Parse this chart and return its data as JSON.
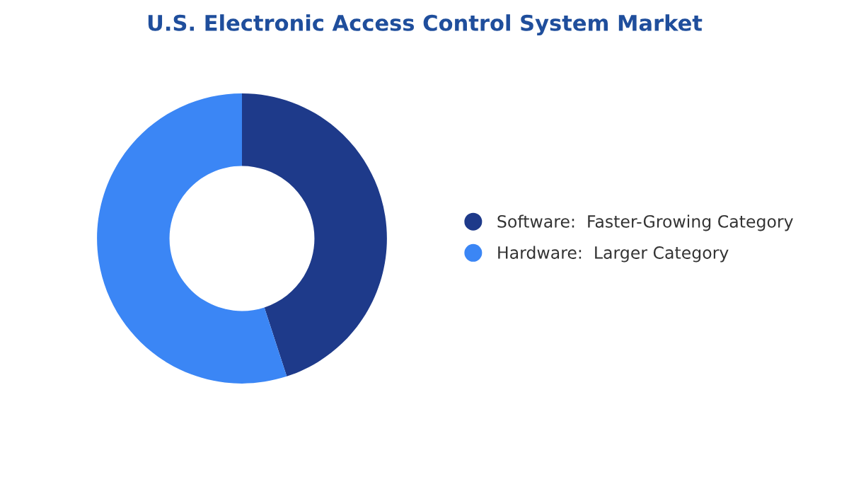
{
  "chart_data": {
    "type": "donut",
    "title": "U.S. Electronic Access Control System Market",
    "categories": [
      "Software:  Faster-Growing Category",
      "Hardware:  Larger Category"
    ],
    "values": [
      45,
      55
    ],
    "colors": [
      "#1e3a8a",
      "#3b86f5"
    ],
    "legend": "right"
  }
}
